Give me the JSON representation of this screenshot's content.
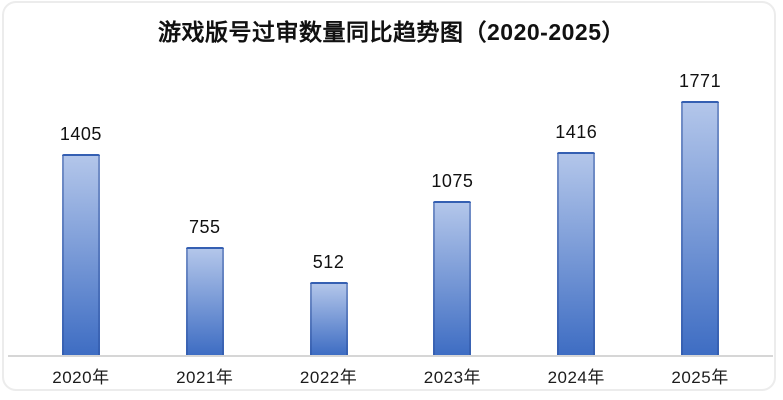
{
  "chart_data": {
    "type": "bar",
    "title": "游戏版号过审数量同比趋势图（2020-2025）",
    "categories": [
      "2020年",
      "2021年",
      "2022年",
      "2023年",
      "2024年",
      "2025年"
    ],
    "values": [
      1405,
      755,
      512,
      1075,
      1416,
      1771
    ],
    "value_labels": [
      "1405",
      "755",
      "512",
      "1075",
      "1416",
      "1771"
    ],
    "xlabel": "",
    "ylabel": "",
    "ylim": [
      0,
      1900
    ],
    "grid": "off",
    "legend": "none",
    "value_labels_shown": true,
    "colors": {
      "bar_gradient_top": "#b3c6ea",
      "bar_gradient_bottom": "#3e6dc3",
      "bar_border": "#2a4f9e",
      "axis_line": "#d6d6d6",
      "title_text": "#111111",
      "label_text": "#1c1c1c",
      "card_border": "#ececec",
      "background": "#ffffff"
    }
  }
}
